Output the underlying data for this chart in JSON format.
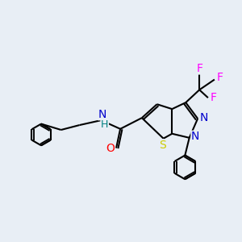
{
  "bg_color": "#e8eef5",
  "bond_color": "#000000",
  "atom_colors": {
    "O": "#ff0000",
    "N": "#0000cc",
    "S": "#cccc00",
    "F": "#ff00ff",
    "H": "#008080",
    "C": "#000000"
  },
  "line_width": 1.5,
  "font_size": 9,
  "figsize": [
    3.0,
    3.0
  ],
  "dpi": 100
}
